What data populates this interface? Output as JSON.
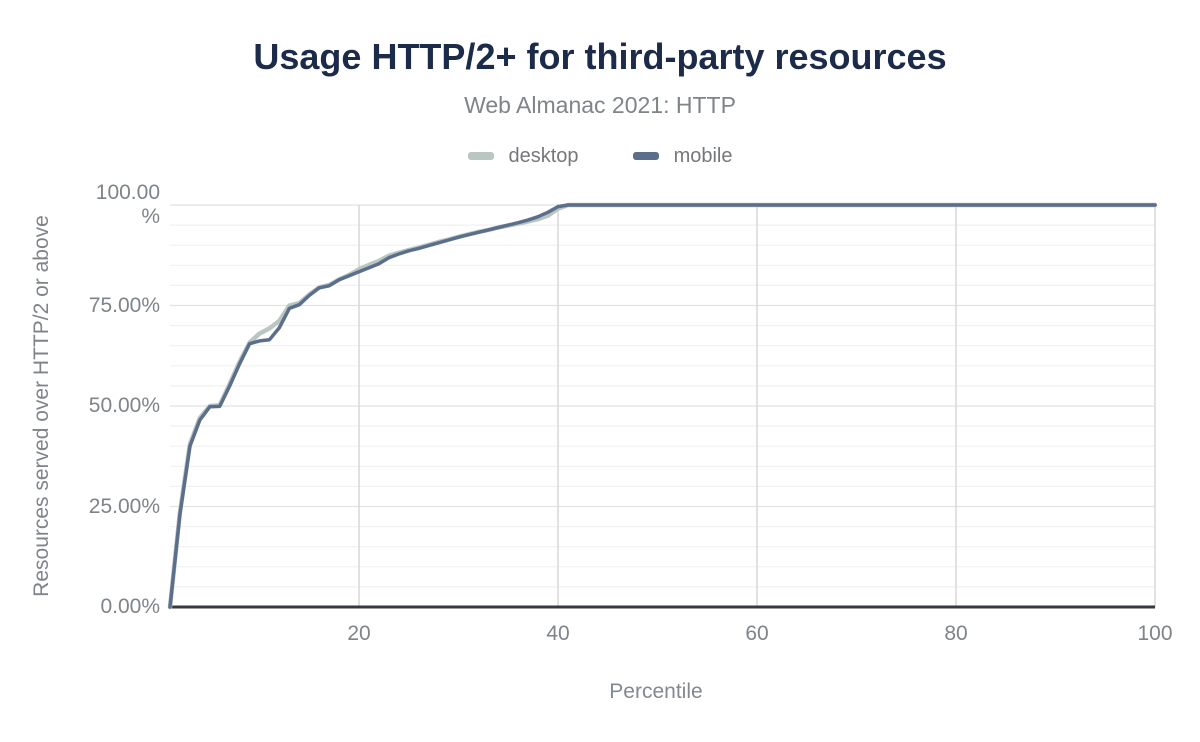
{
  "header": {
    "title": "Usage HTTP/2+ for third-party resources",
    "subtitle": "Web Almanac 2021: HTTP"
  },
  "axes": {
    "x_title": "Percentile",
    "y_title": "Resources served over HTTP/2 or above"
  },
  "chart_data": {
    "type": "line",
    "title": "Usage HTTP/2+ for third-party resources",
    "subtitle": "Web Almanac 2021: HTTP",
    "xlabel": "Percentile",
    "ylabel": "Resources served over HTTP/2 or above",
    "xlim": [
      1,
      100
    ],
    "ylim": [
      0,
      100
    ],
    "legend_position": "top",
    "grid": {
      "minor_step": 5,
      "major_step": 25,
      "minor_color": "#f1f1f1",
      "major_color": "#e2e2e2",
      "vertical_color": "#d8d8d8"
    },
    "axis_color": "#343a40",
    "x_ticks": [
      20,
      40,
      60,
      80,
      100
    ],
    "x_tick_labels": [
      "20",
      "40",
      "60",
      "80",
      "100"
    ],
    "y_ticks": [
      100,
      75,
      50,
      25,
      0
    ],
    "y_tick_labels": [
      "100.00\n%",
      "75.00%",
      "50.00%",
      "25.00%",
      "0.00%"
    ],
    "x": [
      1,
      2,
      3,
      4,
      5,
      6,
      7,
      8,
      9,
      10,
      11,
      12,
      13,
      14,
      15,
      16,
      17,
      18,
      19,
      20,
      21,
      22,
      23,
      24,
      25,
      26,
      27,
      28,
      29,
      30,
      31,
      32,
      33,
      34,
      35,
      36,
      37,
      38,
      39,
      40,
      41,
      42,
      43,
      44,
      45,
      46,
      47,
      48,
      49,
      50,
      51,
      52,
      53,
      54,
      55,
      56,
      57,
      58,
      59,
      60,
      61,
      62,
      63,
      64,
      65,
      66,
      67,
      68,
      69,
      70,
      71,
      72,
      73,
      74,
      75,
      76,
      77,
      78,
      79,
      80,
      81,
      82,
      83,
      84,
      85,
      86,
      87,
      88,
      89,
      90,
      91,
      92,
      93,
      94,
      95,
      96,
      97,
      98,
      99,
      100
    ],
    "series": [
      {
        "name": "desktop",
        "color": "#bac6c1",
        "stroke_width": 4.5,
        "values": [
          0,
          23.5,
          40.5,
          47,
          50,
          50.2,
          55.5,
          61,
          65.8,
          68,
          69.3,
          71.2,
          75,
          75.6,
          77.7,
          79.5,
          80.1,
          81.5,
          82.6,
          84,
          85.1,
          86.1,
          87.4,
          88.1,
          88.8,
          89.4,
          90.1,
          90.8,
          91.4,
          92.1,
          92.7,
          93.3,
          93.8,
          94.4,
          94.9,
          95.4,
          95.9,
          96.5,
          97.4,
          99.1,
          100,
          100,
          100,
          100,
          100,
          100,
          100,
          100,
          100,
          100,
          100,
          100,
          100,
          100,
          100,
          100,
          100,
          100,
          100,
          100,
          100,
          100,
          100,
          100,
          100,
          100,
          100,
          100,
          100,
          100,
          100,
          100,
          100,
          100,
          100,
          100,
          100,
          100,
          100,
          100,
          100,
          100,
          100,
          100,
          100,
          100,
          100,
          100,
          100,
          100,
          100,
          100,
          100,
          100,
          100,
          100,
          100,
          100,
          100,
          100
        ]
      },
      {
        "name": "mobile",
        "color": "#5b6e8c",
        "stroke_width": 3.5,
        "values": [
          0,
          23,
          40,
          46.5,
          49.8,
          49.9,
          55,
          60.5,
          65.5,
          66.2,
          66.5,
          69.5,
          74.3,
          75.2,
          77.5,
          79.4,
          79.9,
          81.4,
          82.4,
          83.4,
          84.4,
          85.4,
          86.9,
          87.8,
          88.6,
          89.2,
          89.9,
          90.6,
          91.3,
          92,
          92.6,
          93.2,
          93.8,
          94.4,
          95,
          95.6,
          96.3,
          97.1,
          98.2,
          99.6,
          100,
          100,
          100,
          100,
          100,
          100,
          100,
          100,
          100,
          100,
          100,
          100,
          100,
          100,
          100,
          100,
          100,
          100,
          100,
          100,
          100,
          100,
          100,
          100,
          100,
          100,
          100,
          100,
          100,
          100,
          100,
          100,
          100,
          100,
          100,
          100,
          100,
          100,
          100,
          100,
          100,
          100,
          100,
          100,
          100,
          100,
          100,
          100,
          100,
          100,
          100,
          100,
          100,
          100,
          100,
          100,
          100,
          100,
          100,
          100
        ]
      }
    ]
  }
}
